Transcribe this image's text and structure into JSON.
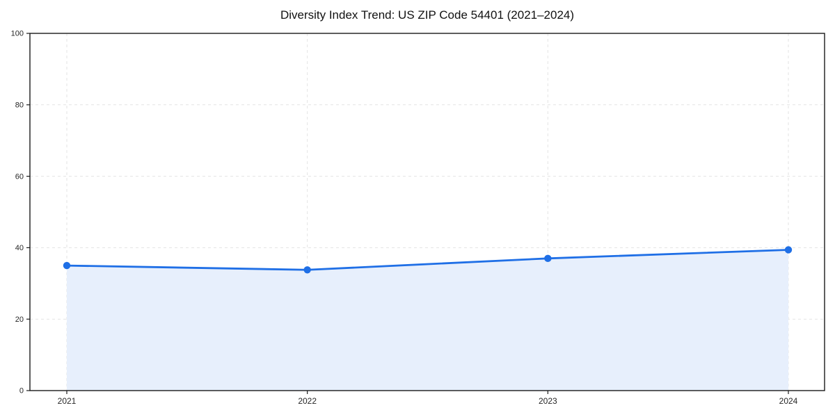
{
  "chart_data": {
    "type": "area",
    "title": "Diversity Index Trend: US ZIP Code 54401 (2021–2024)",
    "series_name": "Diversity Index",
    "x": [
      "2021",
      "2022",
      "2023",
      "2024"
    ],
    "values": [
      35.0,
      33.8,
      37.0,
      39.4
    ],
    "xlabel": "",
    "ylabel": "",
    "ylim": [
      0,
      100
    ],
    "yticks": [
      0,
      20,
      40,
      60,
      80,
      100
    ],
    "grid": true,
    "grid_style": "dashed",
    "legend": "none",
    "colors": {
      "line": "#1f6fe6",
      "marker": "#1f6fe6",
      "area_fill": "#e7effc",
      "gridline": "#e3e3e3",
      "axis": "#1a1a1a",
      "tick_label": "#262626",
      "background": "#ffffff"
    }
  }
}
